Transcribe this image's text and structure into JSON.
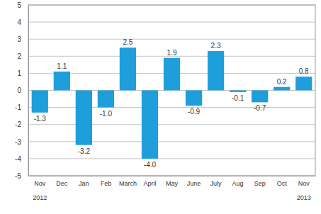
{
  "chart_data": {
    "type": "bar",
    "categories": [
      "Nov",
      "Dec",
      "Jan",
      "Feb",
      "March",
      "April",
      "May",
      "June",
      "July",
      "Aug",
      "Sep",
      "Oct",
      "Nov"
    ],
    "values": [
      -1.3,
      1.1,
      -3.2,
      -1.0,
      2.5,
      -4.0,
      1.9,
      -0.9,
      2.3,
      -0.1,
      -0.7,
      0.2,
      0.8
    ],
    "value_labels": [
      "-1.3",
      "1.1",
      "-3.2",
      "-1.0",
      "2.5",
      "-4.0",
      "1.9",
      "-0.9",
      "2.3",
      "-0.1",
      "-0.7",
      "0.2",
      "0.8"
    ],
    "color": "#1e9fdc",
    "ylim": [
      -5,
      5
    ],
    "yticks": [
      -5,
      -4,
      -3,
      -2,
      -1,
      0,
      1,
      2,
      3,
      4,
      5
    ],
    "grid": true,
    "data_labels": true,
    "annotations": [
      {
        "text": "2012",
        "category": 0
      },
      {
        "text": "2013",
        "category": 12
      }
    ]
  }
}
